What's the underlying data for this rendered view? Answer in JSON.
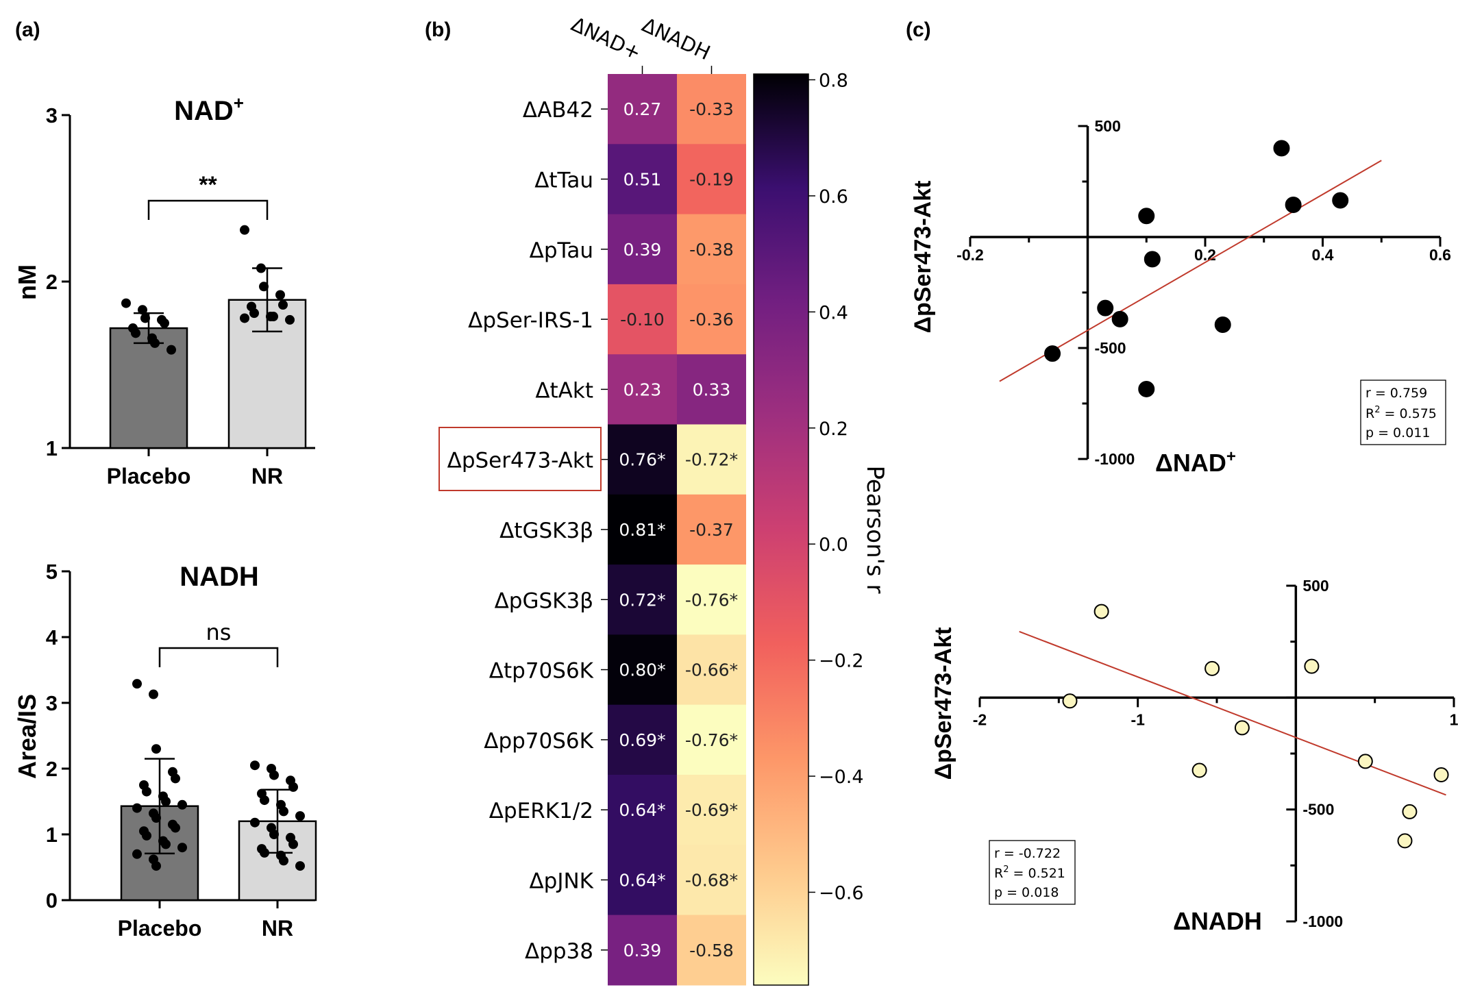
{
  "panel_labels": {
    "a": "(a)",
    "b": "(b)",
    "c": "(c)"
  },
  "colors": {
    "placebo_bar": "#777777",
    "nr_bar": "#d9d9d9",
    "fit_line": "#c0392b",
    "nadh_point": "#fbf6c1",
    "highlight_box": "#c0392b"
  },
  "chart_data": [
    {
      "id": "a_top",
      "type": "bar",
      "title": "NAD",
      "title_sup": "+",
      "ylabel": "nM",
      "xlabel": "",
      "categories": [
        "Placebo",
        "NR"
      ],
      "values": [
        1.72,
        1.89
      ],
      "errors": [
        0.09,
        0.19
      ],
      "ylim": [
        1,
        3
      ],
      "yticks": [
        1,
        2,
        3
      ],
      "significance": "**",
      "points": [
        [
          1.87,
          1.83,
          1.78,
          1.77,
          1.75,
          1.72,
          1.69,
          1.66,
          1.63,
          1.59
        ],
        [
          2.31,
          2.08,
          1.97,
          1.92,
          1.86,
          1.85,
          1.81,
          1.79,
          1.79,
          1.77,
          1.78
        ]
      ]
    },
    {
      "id": "a_bottom",
      "type": "bar",
      "title": "NADH",
      "ylabel": "Area/IS",
      "xlabel": "",
      "categories": [
        "Placebo",
        "NR"
      ],
      "values": [
        1.43,
        1.2
      ],
      "errors": [
        0.72,
        0.48
      ],
      "ylim": [
        0,
        5
      ],
      "yticks": [
        0,
        1,
        2,
        3,
        4,
        5
      ],
      "significance": "ns",
      "points": [
        [
          3.29,
          3.13,
          2.3,
          1.95,
          1.85,
          1.75,
          1.65,
          1.58,
          1.5,
          1.45,
          1.4,
          1.32,
          1.25,
          1.15,
          1.1,
          1.05,
          0.98,
          0.9,
          0.85,
          0.8,
          0.7,
          0.62,
          0.52
        ],
        [
          2.05,
          2.0,
          1.9,
          1.82,
          1.72,
          1.62,
          1.52,
          1.45,
          1.35,
          1.28,
          1.18,
          1.1,
          1.0,
          0.95,
          0.85,
          0.78,
          0.72,
          0.68,
          0.6,
          0.52
        ]
      ]
    },
    {
      "id": "b_heatmap",
      "type": "heatmap",
      "columns": [
        "ΔNAD+",
        "ΔNADH"
      ],
      "rows": [
        "ΔAB42",
        "ΔtTau",
        "ΔpTau",
        "ΔpSer-IRS-1",
        "ΔtAkt",
        "ΔpSer473-Akt",
        "ΔtGSK3β",
        "ΔpGSK3β",
        "Δtp70S6K",
        "Δpp70S6K",
        "ΔpERK1/2",
        "ΔpJNK",
        "Δpp38"
      ],
      "values": [
        [
          0.27,
          -0.33
        ],
        [
          0.51,
          -0.19
        ],
        [
          0.39,
          -0.38
        ],
        [
          -0.1,
          -0.36
        ],
        [
          0.23,
          0.33
        ],
        [
          0.76,
          -0.72
        ],
        [
          0.81,
          -0.37
        ],
        [
          0.72,
          -0.76
        ],
        [
          0.8,
          -0.66
        ],
        [
          0.69,
          -0.76
        ],
        [
          0.64,
          -0.69
        ],
        [
          0.64,
          -0.68
        ],
        [
          0.39,
          -0.58
        ]
      ],
      "labels": [
        [
          "0.27",
          "-0.33"
        ],
        [
          "0.51",
          "-0.19"
        ],
        [
          "0.39",
          "-0.38"
        ],
        [
          "-0.10",
          "-0.36"
        ],
        [
          "0.23",
          "0.33"
        ],
        [
          "0.76*",
          "-0.72*"
        ],
        [
          "0.81*",
          "-0.37"
        ],
        [
          "0.72*",
          "-0.76*"
        ],
        [
          "0.80*",
          "-0.66*"
        ],
        [
          "0.69*",
          "-0.76*"
        ],
        [
          "0.64*",
          "-0.69*"
        ],
        [
          "0.64*",
          "-0.68*"
        ],
        [
          "0.39",
          "-0.58"
        ]
      ],
      "highlighted_row": "ΔpSer473-Akt",
      "colorbar_label": "Pearson's r",
      "colorbar_range": [
        -0.76,
        0.81
      ],
      "colorbar_ticks": [
        0.8,
        0.6,
        0.4,
        0.2,
        0.0,
        -0.2,
        -0.4,
        -0.6
      ],
      "colorbar_tick_labels": [
        "0.8",
        "0.6",
        "0.4",
        "0.2",
        "0.0",
        "−0.2",
        "−0.4",
        "−0.6"
      ],
      "colormap": "magma"
    },
    {
      "id": "c_top",
      "type": "scatter",
      "xlabel": "ΔNAD",
      "xlabel_sup": "+",
      "ylabel": "ΔpSer473-Akt",
      "xlim": [
        -0.2,
        0.6
      ],
      "ylim": [
        -1000,
        500
      ],
      "xticks": [
        -0.2,
        0.2,
        0.4,
        0.6
      ],
      "xtick_labels": [
        "-0.2",
        "0.2",
        "0.4",
        "0.6"
      ],
      "yticks": [
        500,
        -500,
        -1000
      ],
      "ytick_labels": [
        "500",
        "-500",
        "-1000"
      ],
      "x": [
        -0.06,
        0.03,
        0.055,
        0.1,
        0.11,
        0.1,
        0.23,
        0.33,
        0.35,
        0.43
      ],
      "y": [
        -525,
        -320,
        -370,
        95,
        -100,
        -685,
        -395,
        400,
        145,
        165
      ],
      "fit": {
        "x": [
          -0.15,
          0.5
        ],
        "y": [
          -650,
          345
        ]
      },
      "stats": [
        "r = 0.759",
        "R",
        "2",
        " = 0.575",
        "p = 0.011"
      ]
    },
    {
      "id": "c_bottom",
      "type": "scatter",
      "xlabel": "ΔNADH",
      "ylabel": "ΔpSer473-Akt",
      "xlim": [
        -2,
        1
      ],
      "ylim": [
        -1000,
        500
      ],
      "xticks": [
        -2,
        -1,
        1
      ],
      "xtick_labels": [
        "-2",
        "-1",
        "1"
      ],
      "yticks": [
        500,
        -500,
        -1000
      ],
      "ytick_labels": [
        "500",
        "-500",
        "-1000"
      ],
      "x": [
        -1.43,
        -1.23,
        -0.53,
        -0.34,
        -0.61,
        0.1,
        0.44,
        0.72,
        0.92,
        0.69
      ],
      "y": [
        -15,
        385,
        130,
        -135,
        -325,
        140,
        -285,
        -510,
        -345,
        -640
      ],
      "fit": {
        "x": [
          -1.75,
          0.95
        ],
        "y": [
          295,
          -435
        ]
      },
      "stats": [
        "r = -0.722",
        "R",
        "2",
        " = 0.521",
        "p = 0.018"
      ]
    }
  ]
}
